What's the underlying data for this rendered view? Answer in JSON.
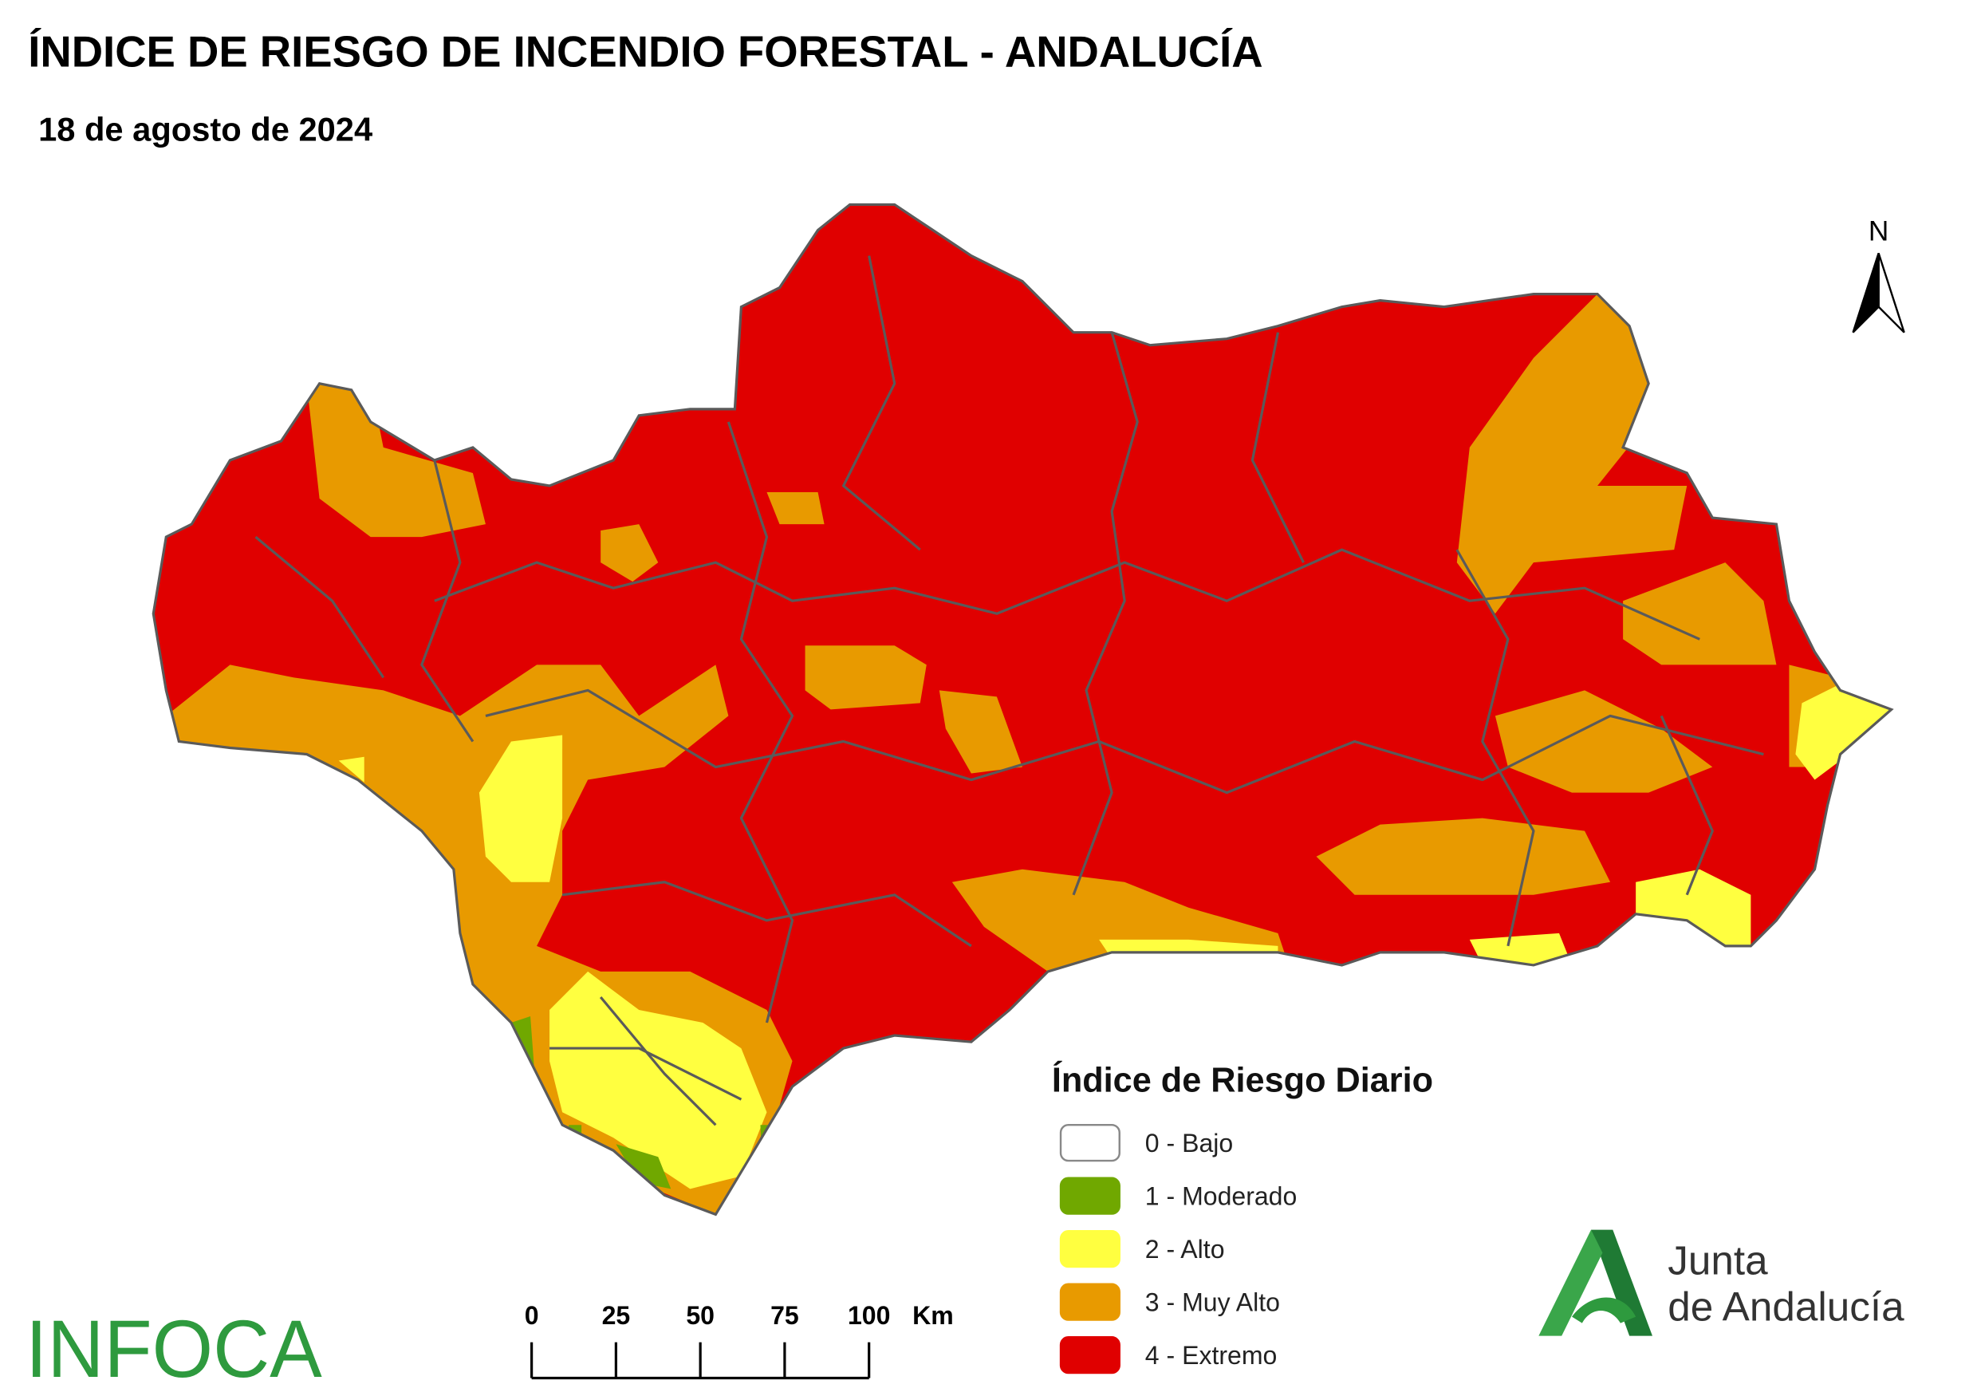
{
  "header": {
    "title": "ÍNDICE DE RIESGO DE INCENDIO FORESTAL - ANDALUCÍA",
    "subtitle": "18 de agosto de 2024"
  },
  "north_arrow": "N",
  "legend": {
    "title": "Índice de Riesgo Diario",
    "items": [
      {
        "label": "0 - Bajo",
        "color": "#ffffff"
      },
      {
        "label": "1 - Moderado",
        "color": "#70a800"
      },
      {
        "label": "2 - Alto",
        "color": "#ffff40"
      },
      {
        "label": "3 - Muy Alto",
        "color": "#e89a00"
      },
      {
        "label": "4 - Extremo",
        "color": "#e00000"
      }
    ]
  },
  "scale_bar": {
    "ticks": [
      0,
      25,
      50,
      75,
      100
    ],
    "unit": "Km"
  },
  "logos": {
    "infoca": "INFOCA",
    "junta_line1": "Junta",
    "junta_line2": "de Andalucía"
  }
}
